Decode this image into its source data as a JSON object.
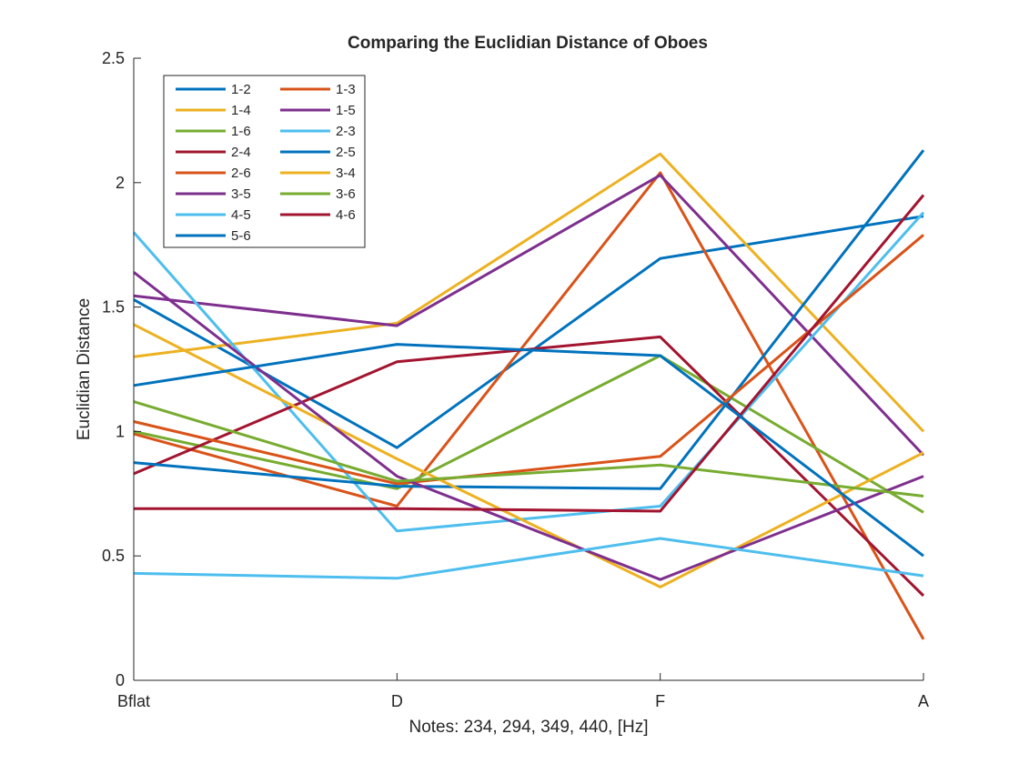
{
  "chart_data": {
    "type": "line",
    "title": "Comparing the Euclidian Distance of Oboes",
    "xlabel": "Notes: 234, 294, 349, 440, [Hz]",
    "ylabel": "Euclidian Distance",
    "categories": [
      "Bflat",
      "D",
      "F",
      "A"
    ],
    "ylim": [
      0,
      2.5
    ],
    "yticks": [
      0,
      0.5,
      1,
      1.5,
      2,
      2.5
    ],
    "ytick_labels": [
      "0",
      "0.5",
      "1",
      "1.5",
      "2",
      "2.5"
    ],
    "grid": false,
    "legend_position": "top-left",
    "series": [
      {
        "name": "1-2",
        "color": "#0072BD",
        "values": [
          1.53,
          0.935,
          1.695,
          1.865
        ]
      },
      {
        "name": "1-3",
        "color": "#D95319",
        "values": [
          0.99,
          0.7,
          2.04,
          0.165
        ]
      },
      {
        "name": "1-4",
        "color": "#EDB120",
        "values": [
          1.3,
          1.435,
          2.115,
          1.0
        ]
      },
      {
        "name": "1-5",
        "color": "#7E2F8E",
        "values": [
          1.545,
          1.425,
          2.03,
          0.905
        ]
      },
      {
        "name": "1-6",
        "color": "#77AC30",
        "values": [
          1.0,
          0.77,
          1.305,
          0.675
        ]
      },
      {
        "name": "2-3",
        "color": "#4DBEEE",
        "values": [
          1.8,
          0.6,
          0.7,
          1.88
        ]
      },
      {
        "name": "2-4",
        "color": "#A2142F",
        "values": [
          0.83,
          1.28,
          1.38,
          0.34
        ]
      },
      {
        "name": "2-5",
        "color": "#0072BD",
        "values": [
          0.875,
          0.78,
          0.77,
          2.13
        ]
      },
      {
        "name": "2-6",
        "color": "#D95319",
        "values": [
          1.04,
          0.79,
          0.9,
          1.79
        ]
      },
      {
        "name": "3-4",
        "color": "#EDB120",
        "values": [
          1.43,
          0.89,
          0.375,
          0.915
        ]
      },
      {
        "name": "3-5",
        "color": "#7E2F8E",
        "values": [
          1.64,
          0.82,
          0.405,
          0.82
        ]
      },
      {
        "name": "3-6",
        "color": "#77AC30",
        "values": [
          1.12,
          0.8,
          0.865,
          0.74
        ]
      },
      {
        "name": "4-5",
        "color": "#4DBEEE",
        "values": [
          0.43,
          0.41,
          0.57,
          0.42
        ]
      },
      {
        "name": "4-6",
        "color": "#A2142F",
        "values": [
          0.69,
          0.69,
          0.68,
          1.95
        ]
      },
      {
        "name": "5-6",
        "color": "#0072BD",
        "values": [
          1.185,
          1.35,
          1.305,
          0.5
        ]
      }
    ]
  }
}
